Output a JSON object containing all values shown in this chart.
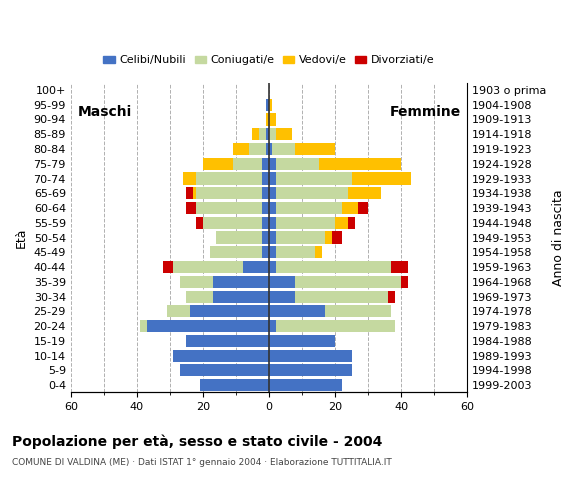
{
  "age_groups": [
    "0-4",
    "5-9",
    "10-14",
    "15-19",
    "20-24",
    "25-29",
    "30-34",
    "35-39",
    "40-44",
    "45-49",
    "50-54",
    "55-59",
    "60-64",
    "65-69",
    "70-74",
    "75-79",
    "80-84",
    "85-89",
    "90-94",
    "95-99",
    "100+"
  ],
  "birth_years": [
    "1999-2003",
    "1994-1998",
    "1989-1993",
    "1984-1988",
    "1979-1983",
    "1974-1978",
    "1969-1973",
    "1964-1968",
    "1959-1963",
    "1954-1958",
    "1949-1953",
    "1944-1948",
    "1939-1943",
    "1934-1938",
    "1929-1933",
    "1924-1928",
    "1919-1923",
    "1914-1918",
    "1909-1913",
    "1904-1908",
    "1903 o prima"
  ],
  "male": {
    "celibe": [
      21,
      27,
      29,
      25,
      37,
      24,
      17,
      17,
      8,
      2,
      2,
      2,
      2,
      2,
      2,
      2,
      1,
      1,
      0,
      1,
      0
    ],
    "coniugato": [
      0,
      0,
      0,
      0,
      2,
      7,
      8,
      10,
      21,
      16,
      14,
      18,
      20,
      20,
      20,
      9,
      5,
      2,
      0,
      0,
      0
    ],
    "vedovo": [
      0,
      0,
      0,
      0,
      0,
      0,
      0,
      0,
      0,
      0,
      0,
      0,
      0,
      1,
      4,
      9,
      5,
      2,
      1,
      0,
      0
    ],
    "divorziato": [
      0,
      0,
      0,
      0,
      0,
      0,
      0,
      0,
      3,
      0,
      0,
      2,
      3,
      2,
      0,
      0,
      0,
      0,
      0,
      0,
      0
    ]
  },
  "female": {
    "nubile": [
      22,
      25,
      25,
      20,
      2,
      17,
      8,
      8,
      2,
      2,
      2,
      2,
      2,
      2,
      2,
      2,
      1,
      0,
      0,
      0,
      0
    ],
    "coniugata": [
      0,
      0,
      0,
      0,
      36,
      20,
      28,
      32,
      35,
      12,
      15,
      18,
      20,
      22,
      23,
      13,
      7,
      2,
      0,
      0,
      0
    ],
    "vedova": [
      0,
      0,
      0,
      0,
      0,
      0,
      0,
      0,
      0,
      2,
      2,
      4,
      5,
      10,
      18,
      25,
      12,
      5,
      2,
      1,
      0
    ],
    "divorziata": [
      0,
      0,
      0,
      0,
      0,
      0,
      2,
      2,
      5,
      0,
      3,
      2,
      3,
      0,
      0,
      0,
      0,
      0,
      0,
      0,
      0
    ]
  },
  "colors": {
    "celibe": "#4472c4",
    "coniugato": "#c5d9a0",
    "vedovo": "#ffc000",
    "divorziato": "#cc0000"
  },
  "xlim": 60,
  "xtick_step": 20,
  "title": "Popolazione per età, sesso e stato civile - 2004",
  "subtitle": "COMUNE DI VALDINA (ME) · Dati ISTAT 1° gennaio 2004 · Elaborazione TUTTITALIA.IT",
  "legend_labels": [
    "Celibi/Nubili",
    "Coniugati/e",
    "Vedovi/e",
    "Divorziati/e"
  ],
  "label_maschi": "Maschi",
  "label_femmine": "Femmine",
  "ylabel_left": "Età",
  "ylabel_right": "Anno di nascita",
  "background_color": "#ffffff",
  "bar_height": 0.82
}
